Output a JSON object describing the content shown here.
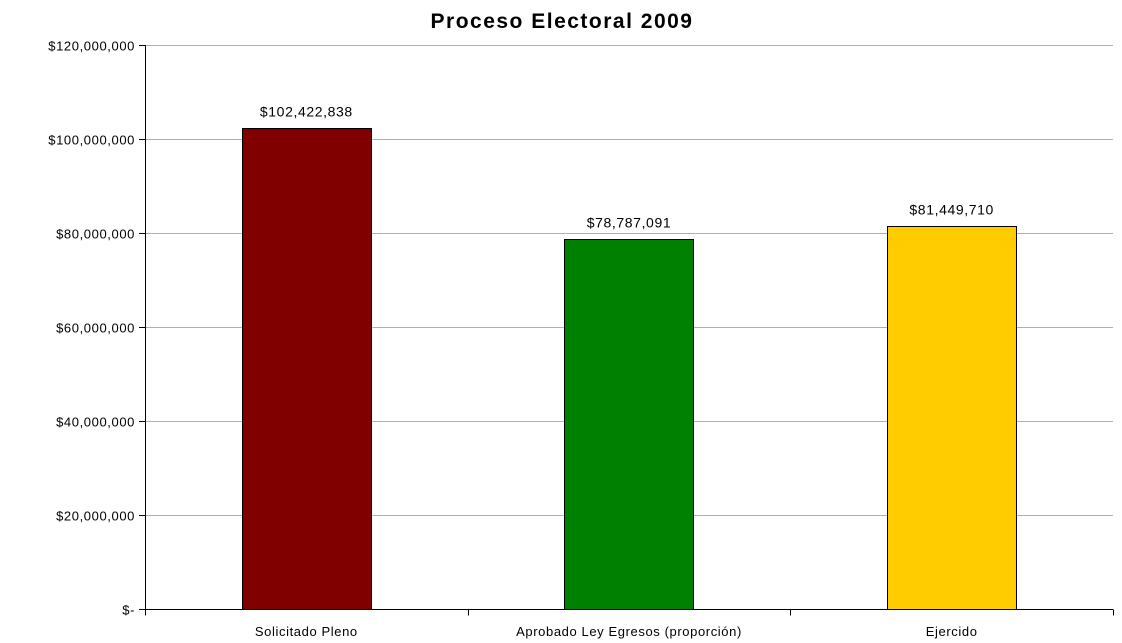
{
  "chart_data": {
    "type": "bar",
    "title": "Proceso Electoral 2009",
    "xlabel": "",
    "ylabel": "",
    "categories": [
      "Solicitado Pleno",
      "Aprobado Ley Egresos (proporción)",
      "Ejercido"
    ],
    "values": [
      102422838,
      78787091,
      81449710
    ],
    "data_labels": [
      "$102,422,838",
      "$78,787,091",
      "$81,449,710"
    ],
    "bar_colors": [
      "#800000",
      "#008000",
      "#ffcc00"
    ],
    "ylim": [
      0,
      120000000
    ],
    "y_ticks": [
      {
        "value": 120000000,
        "label": "$120,000,000"
      },
      {
        "value": 100000000,
        "label": "$100,000,000"
      },
      {
        "value": 80000000,
        "label": "$80,000,000"
      },
      {
        "value": 60000000,
        "label": "$60,000,000"
      },
      {
        "value": 40000000,
        "label": "$40,000,000"
      },
      {
        "value": 20000000,
        "label": "$20,000,000"
      },
      {
        "value": 0,
        "label": "$-"
      }
    ],
    "grid": true,
    "legend": "none"
  }
}
